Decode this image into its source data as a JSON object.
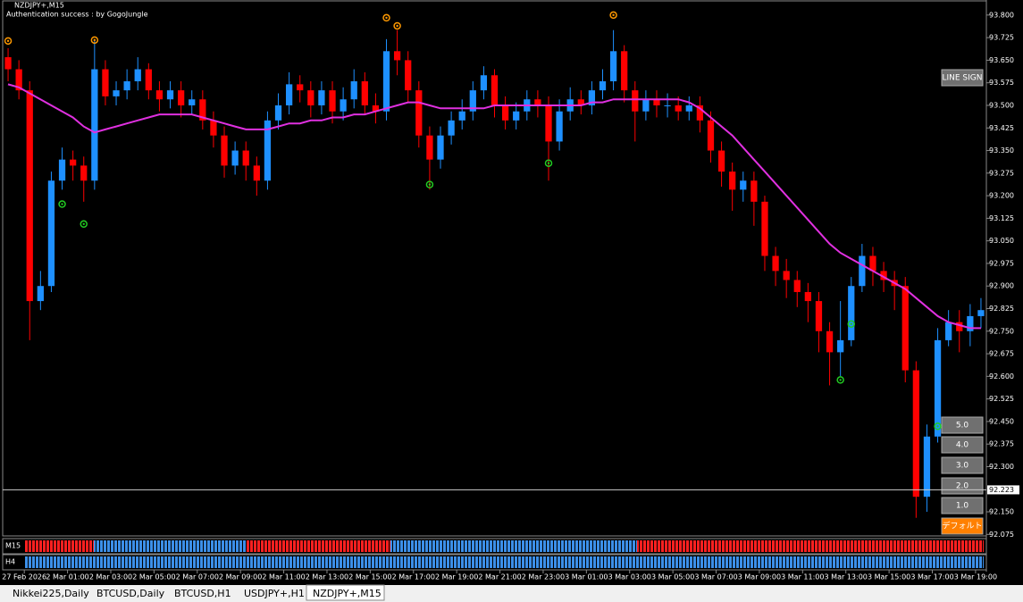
{
  "chart_data": {
    "type": "candlestick",
    "title": "NZDJPY+,M15",
    "subtitle": "Authentication success : by GogoJungle",
    "up_color": "#1e90ff",
    "down_color": "#ff0000",
    "ma_color": "#e030e0",
    "marker_colors": [
      "#ff9900",
      "#22cc22"
    ],
    "open": [
      93.66,
      93.62,
      93.55,
      92.85,
      92.9,
      93.25,
      93.32,
      93.3,
      93.25,
      93.62,
      93.53,
      93.55,
      93.58,
      93.62,
      93.55,
      93.52,
      93.55,
      93.5,
      93.52,
      93.45,
      93.4,
      93.3,
      93.35,
      93.3,
      93.25,
      93.45,
      93.5,
      93.57,
      93.55,
      93.5,
      93.55,
      93.48,
      93.52,
      93.58,
      93.5,
      93.48,
      93.68,
      93.65,
      93.55,
      93.4,
      93.32,
      93.4,
      93.45,
      93.48,
      93.55,
      93.6,
      93.5,
      93.45,
      93.48,
      93.52,
      93.5,
      93.38,
      93.48,
      93.52,
      93.5,
      93.55,
      93.58,
      93.68,
      93.55,
      93.48,
      93.52,
      93.5,
      93.5,
      93.48,
      93.5,
      93.45,
      93.35,
      93.28,
      93.22,
      93.25,
      93.18,
      93.0,
      92.95,
      92.92,
      92.88,
      92.85,
      92.75,
      92.68,
      92.72,
      92.9,
      93.0,
      92.95,
      92.92,
      92.9,
      92.62,
      92.2,
      92.4,
      92.72,
      92.78,
      92.75,
      92.8
    ],
    "high": [
      93.69,
      93.65,
      93.58,
      92.95,
      93.28,
      93.36,
      93.35,
      93.33,
      93.72,
      93.65,
      93.58,
      93.62,
      93.66,
      93.64,
      93.58,
      93.58,
      93.58,
      93.55,
      93.55,
      93.48,
      93.43,
      93.38,
      93.38,
      93.33,
      93.48,
      93.54,
      93.61,
      93.6,
      93.58,
      93.58,
      93.58,
      93.56,
      93.62,
      93.61,
      93.54,
      93.72,
      93.75,
      93.68,
      93.58,
      93.43,
      93.43,
      93.48,
      93.52,
      93.58,
      93.63,
      93.62,
      93.53,
      93.51,
      93.55,
      93.55,
      93.53,
      93.52,
      93.56,
      93.55,
      93.58,
      93.62,
      93.75,
      93.7,
      93.58,
      93.55,
      93.55,
      93.54,
      93.53,
      93.53,
      93.53,
      93.48,
      93.38,
      93.31,
      93.28,
      93.28,
      93.2,
      93.03,
      92.99,
      92.95,
      92.91,
      92.88,
      92.78,
      92.85,
      92.93,
      93.04,
      93.03,
      92.98,
      92.95,
      92.93,
      92.65,
      92.44,
      92.76,
      92.82,
      92.82,
      92.84,
      92.86
    ],
    "low": [
      93.58,
      93.52,
      92.72,
      92.82,
      92.88,
      93.22,
      93.25,
      93.18,
      93.22,
      93.5,
      93.5,
      93.52,
      93.55,
      93.52,
      93.48,
      93.49,
      93.46,
      93.47,
      93.42,
      93.36,
      93.26,
      93.27,
      93.25,
      93.2,
      93.22,
      93.42,
      93.47,
      93.51,
      93.46,
      93.47,
      93.44,
      93.45,
      93.49,
      93.47,
      93.44,
      93.45,
      93.6,
      93.51,
      93.36,
      93.22,
      93.29,
      93.37,
      93.42,
      93.45,
      93.52,
      93.46,
      93.42,
      93.42,
      93.45,
      93.46,
      93.25,
      93.35,
      93.45,
      93.47,
      93.47,
      93.52,
      93.55,
      93.51,
      93.38,
      93.45,
      93.46,
      93.46,
      93.45,
      93.45,
      93.41,
      93.31,
      93.23,
      93.15,
      93.18,
      93.1,
      92.95,
      92.9,
      92.86,
      92.83,
      92.78,
      92.68,
      92.57,
      92.6,
      92.7,
      92.88,
      92.9,
      92.88,
      92.82,
      92.58,
      92.13,
      92.15,
      92.38,
      92.7,
      92.68,
      92.7,
      92.76
    ],
    "close": [
      93.62,
      93.55,
      92.85,
      92.9,
      93.25,
      93.32,
      93.3,
      93.25,
      93.62,
      93.53,
      93.55,
      93.58,
      93.62,
      93.55,
      93.52,
      93.55,
      93.5,
      93.52,
      93.45,
      93.4,
      93.3,
      93.35,
      93.3,
      93.25,
      93.45,
      93.5,
      93.57,
      93.55,
      93.5,
      93.55,
      93.48,
      93.52,
      93.58,
      93.5,
      93.48,
      93.68,
      93.65,
      93.55,
      93.4,
      93.32,
      93.4,
      93.45,
      93.48,
      93.55,
      93.6,
      93.5,
      93.45,
      93.48,
      93.52,
      93.5,
      93.38,
      93.48,
      93.52,
      93.5,
      93.55,
      93.58,
      93.68,
      93.55,
      93.48,
      93.52,
      93.5,
      93.5,
      93.48,
      93.5,
      93.45,
      93.35,
      93.28,
      93.22,
      93.25,
      93.18,
      93.0,
      92.95,
      92.92,
      92.88,
      92.85,
      92.75,
      92.68,
      92.72,
      92.9,
      93.0,
      92.95,
      92.92,
      92.9,
      92.62,
      92.2,
      92.4,
      92.72,
      92.78,
      92.75,
      92.8,
      92.82
    ],
    "ma": [
      93.57,
      93.56,
      93.54,
      93.52,
      93.5,
      93.48,
      93.46,
      93.43,
      93.41,
      93.42,
      93.43,
      93.44,
      93.45,
      93.46,
      93.47,
      93.47,
      93.47,
      93.47,
      93.46,
      93.45,
      93.44,
      93.43,
      93.42,
      93.42,
      93.42,
      93.43,
      93.44,
      93.44,
      93.45,
      93.45,
      93.46,
      93.46,
      93.47,
      93.47,
      93.48,
      93.49,
      93.5,
      93.51,
      93.51,
      93.5,
      93.49,
      93.49,
      93.49,
      93.49,
      93.49,
      93.5,
      93.5,
      93.5,
      93.5,
      93.5,
      93.5,
      93.5,
      93.5,
      93.5,
      93.51,
      93.51,
      93.52,
      93.52,
      93.52,
      93.52,
      93.52,
      93.52,
      93.52,
      93.51,
      93.49,
      93.46,
      93.43,
      93.4,
      93.36,
      93.32,
      93.28,
      93.24,
      93.2,
      93.16,
      93.12,
      93.08,
      93.04,
      93.01,
      92.99,
      92.97,
      92.95,
      92.93,
      92.91,
      92.89,
      92.86,
      92.83,
      92.8,
      92.78,
      92.77,
      92.76,
      92.76
    ],
    "markers": [
      {
        "x": [
          0,
          8,
          35,
          36,
          56
        ],
        "y": [
          93.714,
          93.717,
          93.791,
          93.764,
          93.8
        ]
      },
      {
        "x": [
          5,
          7,
          39,
          50,
          77,
          78,
          86
        ],
        "y": [
          93.172,
          93.106,
          93.237,
          93.308,
          92.588,
          92.774,
          92.434
        ]
      }
    ],
    "current_price": 92.223,
    "xlim": [
      -0.5,
      90.5
    ],
    "ylim": [
      92.07,
      93.85
    ],
    "yticks": [
      {
        "value": 93.8,
        "label": "93.800"
      },
      {
        "value": 93.725,
        "label": "93.725"
      },
      {
        "value": 93.65,
        "label": "93.650"
      },
      {
        "value": 93.575,
        "label": "93.575"
      },
      {
        "value": 93.5,
        "label": "93.500"
      },
      {
        "value": 93.425,
        "label": "93.425"
      },
      {
        "value": 93.35,
        "label": "93.350"
      },
      {
        "value": 93.275,
        "label": "93.275"
      },
      {
        "value": 93.2,
        "label": "93.200"
      },
      {
        "value": 93.125,
        "label": "93.125"
      },
      {
        "value": 93.05,
        "label": "93.050"
      },
      {
        "value": 92.975,
        "label": "92.975"
      },
      {
        "value": 92.9,
        "label": "92.900"
      },
      {
        "value": 92.825,
        "label": "92.825"
      },
      {
        "value": 92.75,
        "label": "92.750"
      },
      {
        "value": 92.675,
        "label": "92.675"
      },
      {
        "value": 92.6,
        "label": "92.600"
      },
      {
        "value": 92.525,
        "label": "92.525"
      },
      {
        "value": 92.45,
        "label": "92.450"
      },
      {
        "value": 92.375,
        "label": "92.375"
      },
      {
        "value": 92.3,
        "label": "92.300"
      },
      {
        "value": 92.15,
        "label": "92.150"
      },
      {
        "value": 92.075,
        "label": "92.075"
      }
    ],
    "xticks": [
      {
        "value": 1.5,
        "label": "27 Feb 2026"
      },
      {
        "value": 5.5,
        "label": "2 Mar 01:00"
      },
      {
        "value": 9.5,
        "label": "2 Mar 03:00"
      },
      {
        "value": 13.5,
        "label": "2 Mar 05:00"
      },
      {
        "value": 17.5,
        "label": "2 Mar 07:00"
      },
      {
        "value": 21.5,
        "label": "2 Mar 09:00"
      },
      {
        "value": 25.5,
        "label": "2 Mar 11:00"
      },
      {
        "value": 29.5,
        "label": "2 Mar 13:00"
      },
      {
        "value": 33.5,
        "label": "2 Mar 15:00"
      },
      {
        "value": 37.5,
        "label": "2 Mar 17:00"
      },
      {
        "value": 41.5,
        "label": "2 Mar 19:00"
      },
      {
        "value": 45.5,
        "label": "2 Mar 21:00"
      },
      {
        "value": 49.5,
        "label": "2 Mar 23:00"
      },
      {
        "value": 53.5,
        "label": "3 Mar 01:00"
      },
      {
        "value": 57.5,
        "label": "3 Mar 03:00"
      },
      {
        "value": 61.5,
        "label": "3 Mar 05:00"
      },
      {
        "value": 65.5,
        "label": "3 Mar 07:00"
      },
      {
        "value": 69.5,
        "label": "3 Mar 09:00"
      },
      {
        "value": 73.5,
        "label": "3 Mar 11:00"
      },
      {
        "value": 77.5,
        "label": "3 Mar 13:00"
      },
      {
        "value": 81.5,
        "label": "3 Mar 15:00"
      },
      {
        "value": 85.5,
        "label": "3 Mar 17:00"
      },
      {
        "value": 89.5,
        "label": "3 Mar 19:00"
      }
    ]
  },
  "ui": {
    "buttons": [
      "LINE SIGN",
      "5.0",
      "4.0",
      "3.0",
      "2.0",
      "1.0",
      "デフォルト"
    ],
    "strips": [
      "M15",
      "H4"
    ],
    "tabs": [
      "Nikkei225,Daily",
      "BTCUSD,Daily",
      "BTCUSD,H1",
      "USDJPY+,H1",
      "NZDJPY+,M15"
    ]
  }
}
